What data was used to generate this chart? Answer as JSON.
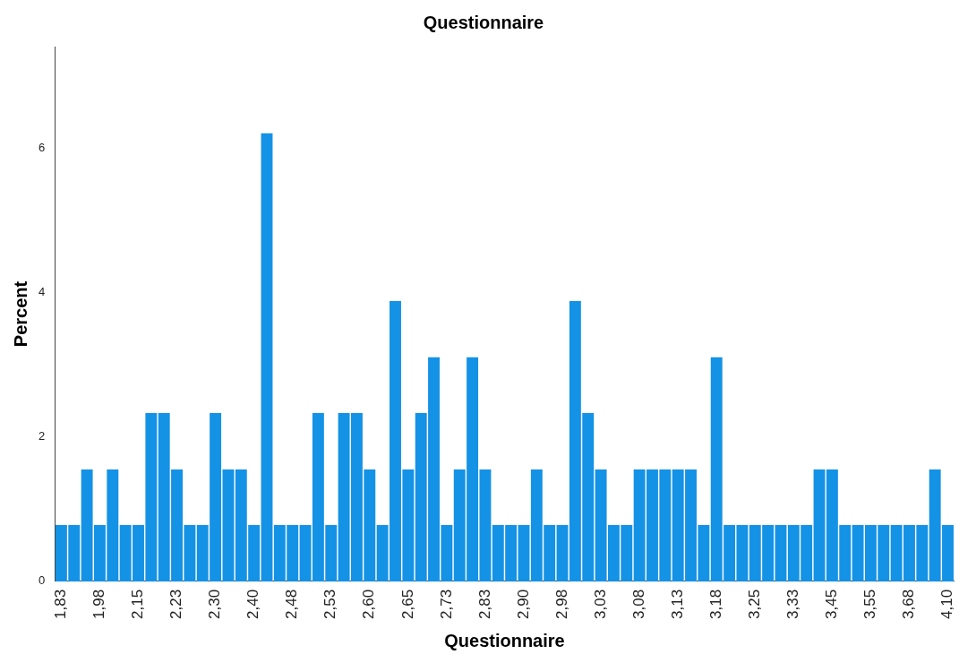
{
  "chart_data": {
    "type": "bar",
    "title": "Questionnaire",
    "xlabel": "Questionnaire",
    "ylabel": "Percent",
    "categories": [
      "1,83",
      null,
      null,
      "1,98",
      null,
      null,
      "2,15",
      null,
      null,
      "2,23",
      null,
      null,
      "2,30",
      null,
      null,
      "2,40",
      null,
      null,
      "2,48",
      null,
      null,
      "2,53",
      null,
      null,
      "2,60",
      null,
      null,
      "2,65",
      null,
      null,
      "2,73",
      null,
      null,
      "2,83",
      null,
      null,
      "2,90",
      null,
      null,
      "2,98",
      null,
      null,
      "3,03",
      null,
      null,
      "3,08",
      null,
      null,
      "3,13",
      null,
      null,
      "3,18",
      null,
      null,
      "3,25",
      null,
      null,
      "3,33",
      null,
      null,
      "3,45",
      null,
      null,
      "3,55",
      null,
      null,
      "3,68",
      null,
      null,
      "4,10"
    ],
    "values": [
      0.78,
      0.78,
      1.55,
      0.78,
      1.55,
      0.78,
      0.78,
      2.33,
      2.33,
      1.55,
      0.78,
      0.78,
      2.33,
      1.55,
      1.55,
      0.78,
      6.2,
      0.78,
      0.78,
      0.78,
      2.33,
      0.78,
      2.33,
      2.33,
      1.55,
      0.78,
      3.88,
      1.55,
      2.33,
      3.1,
      0.78,
      1.55,
      3.1,
      1.55,
      0.78,
      0.78,
      0.78,
      1.55,
      0.78,
      0.78,
      3.88,
      2.33,
      1.55,
      0.78,
      0.78,
      1.55,
      1.55,
      1.55,
      1.55,
      1.55,
      0.78,
      3.1,
      0.78,
      0.78,
      0.78,
      0.78,
      0.78,
      0.78,
      0.78,
      1.55,
      1.55,
      0.78,
      0.78,
      0.78,
      0.78,
      0.78,
      0.78,
      0.78,
      1.55,
      0.78
    ],
    "color": "#1492e6",
    "ylim": [
      0,
      7.4
    ],
    "yticks": [
      0,
      2,
      4,
      6
    ],
    "grid": false,
    "legend": false
  }
}
